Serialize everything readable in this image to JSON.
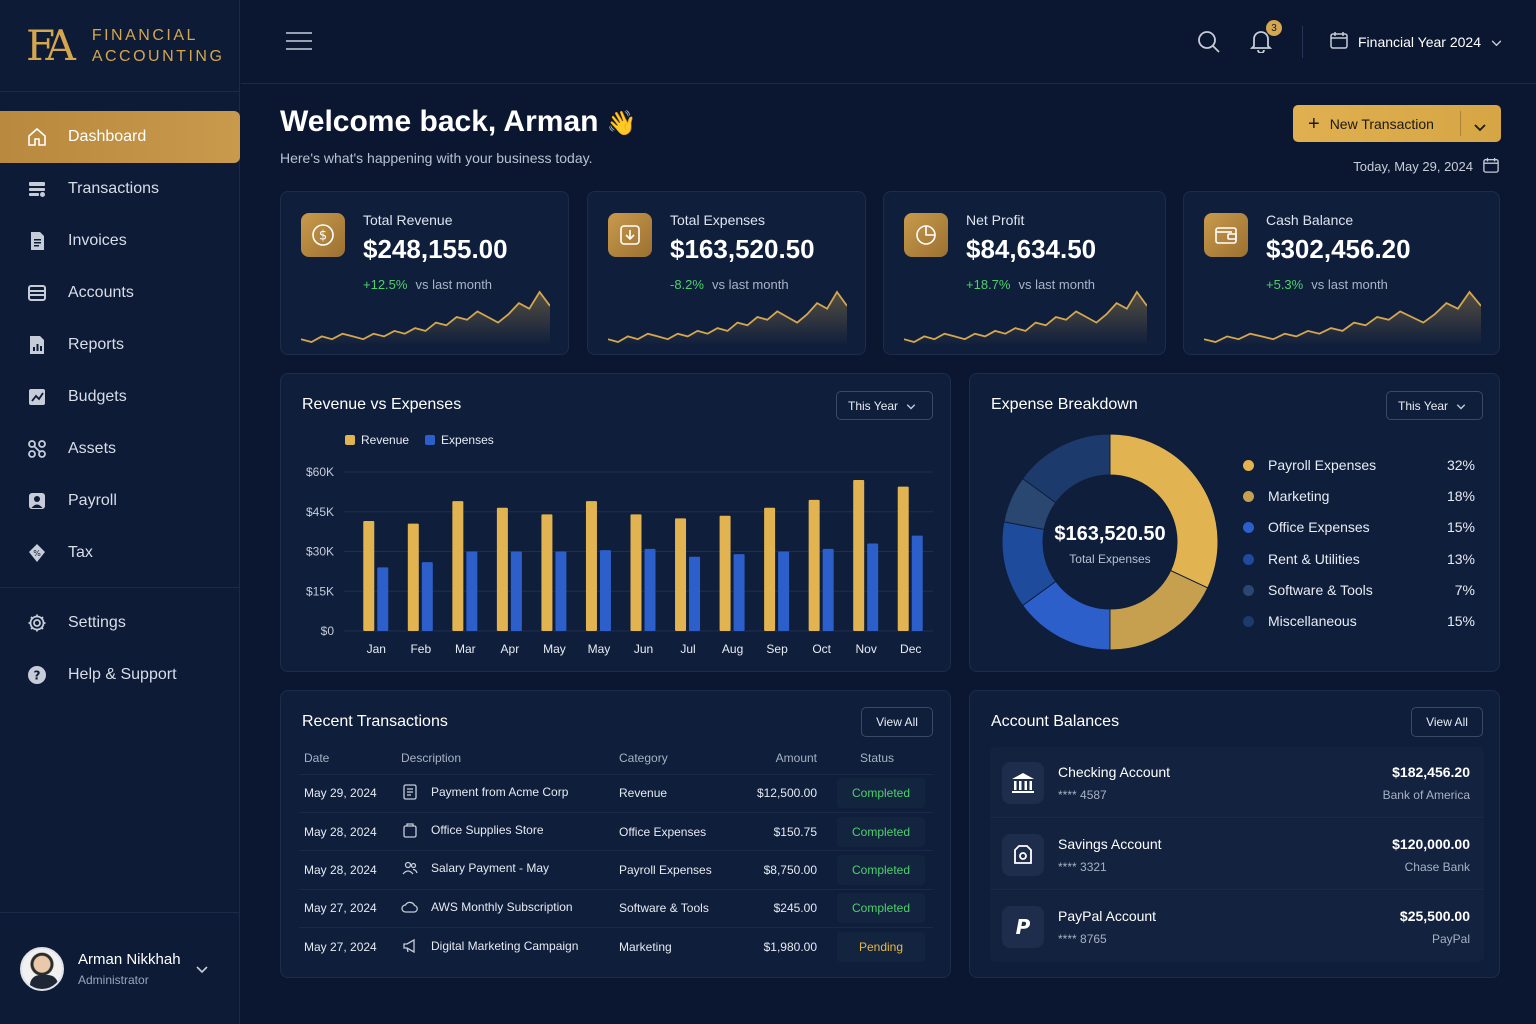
{
  "brand": {
    "mono": "FA",
    "line1": "FINANCIAL",
    "line2": "ACCOUNTING"
  },
  "nav": [
    {
      "label": "Dashboard",
      "icon": "home-icon"
    },
    {
      "label": "Transactions",
      "icon": "transactions-icon"
    },
    {
      "label": "Invoices",
      "icon": "invoice-icon"
    },
    {
      "label": "Accounts",
      "icon": "accounts-icon"
    },
    {
      "label": "Reports",
      "icon": "reports-icon"
    },
    {
      "label": "Budgets",
      "icon": "budgets-icon"
    },
    {
      "label": "Assets",
      "icon": "assets-icon"
    },
    {
      "label": "Payroll",
      "icon": "payroll-icon"
    },
    {
      "label": "Tax",
      "icon": "tax-icon"
    }
  ],
  "nav_bottom": [
    {
      "label": "Settings",
      "icon": "gear-icon"
    },
    {
      "label": "Help & Support",
      "icon": "help-icon"
    }
  ],
  "user": {
    "name": "Arman Nikkhah",
    "role": "Administrator"
  },
  "topbar": {
    "notification_count": "3",
    "year_selector": "Financial Year 2024"
  },
  "header": {
    "welcome": "Welcome back, Arman",
    "wave": "👋",
    "subtitle": "Here's what's happening with your business today.",
    "new_transaction": "New Transaction",
    "today": "Today, May 29, 2024"
  },
  "kpis": [
    {
      "label": "Total Revenue",
      "value": "$248,155.00",
      "change": "+12.5%",
      "vs": "vs last month",
      "icon": "dollar-icon"
    },
    {
      "label": "Total Expenses",
      "value": "$163,520.50",
      "change": "-8.2%",
      "vs": "vs last month",
      "icon": "download-icon"
    },
    {
      "label": "Net Profit",
      "value": "$84,634.50",
      "change": "+18.7%",
      "vs": "vs last month",
      "icon": "pie-icon"
    },
    {
      "label": "Cash Balance",
      "value": "$302,456.20",
      "change": "+5.3%",
      "vs": "vs last month",
      "icon": "wallet-icon"
    }
  ],
  "sparkline": [
    3,
    2,
    4,
    3,
    5,
    4,
    3,
    5,
    4,
    6,
    5,
    7,
    6,
    9,
    8,
    11,
    10,
    13,
    11,
    9,
    12,
    16,
    14,
    20,
    15
  ],
  "revenue_chart": {
    "title": "Revenue vs Expenses",
    "range": "This Year",
    "legend": [
      "Revenue",
      "Expenses"
    ],
    "y_ticks": [
      "$60K",
      "$45K",
      "$30K",
      "$15K",
      "$0"
    ]
  },
  "chart_data": [
    {
      "type": "bar",
      "title": "Revenue vs Expenses",
      "categories": [
        "Jan",
        "Feb",
        "Mar",
        "Apr",
        "May",
        "May",
        "Jun",
        "Jul",
        "Aug",
        "Sep",
        "Oct",
        "Nov",
        "Dec"
      ],
      "series": [
        {
          "name": "Revenue",
          "values": [
            41.5,
            40.5,
            49,
            46.5,
            44,
            49,
            44,
            42.5,
            43.5,
            46.5,
            49.5,
            57,
            54.5
          ]
        },
        {
          "name": "Expenses",
          "values": [
            24,
            26,
            30,
            30,
            30,
            30.5,
            31,
            28,
            29,
            30,
            31,
            33,
            36
          ]
        }
      ],
      "ylim": [
        0,
        60
      ],
      "colors": {
        "Revenue": "#e2b351",
        "Expenses": "#2c5fc9"
      }
    },
    {
      "type": "pie",
      "title": "Expense Breakdown",
      "center_value": "$163,520.50",
      "center_label": "Total Expenses",
      "labels": [
        "Payroll Expenses",
        "Marketing",
        "Office Expenses",
        "Rent & Utilities",
        "Software & Tools",
        "Miscellaneous"
      ],
      "values": [
        32,
        18,
        15,
        13,
        7,
        15
      ],
      "percent_labels": [
        "32%",
        "18%",
        "15%",
        "13%",
        "7%",
        "15%"
      ],
      "colors": [
        "#e2b351",
        "#c7a04f",
        "#2c5fc9",
        "#1e4b9b",
        "#2a4771",
        "#1c3a6b"
      ]
    }
  ],
  "expense_breakdown": {
    "title": "Expense Breakdown",
    "range": "This Year"
  },
  "recent_transactions": {
    "title": "Recent Transactions",
    "view_all": "View All",
    "columns": [
      "Date",
      "Description",
      "Category",
      "Amount",
      "Status"
    ],
    "rows": [
      {
        "date": "May 29, 2024",
        "icon": "receipt-icon",
        "desc": "Payment from Acme Corp",
        "cat": "Revenue",
        "amount": "$12,500.00",
        "status": "Completed"
      },
      {
        "date": "May 28, 2024",
        "icon": "bag-icon",
        "desc": "Office Supplies Store",
        "cat": "Office Expenses",
        "amount": "$150.75",
        "status": "Completed"
      },
      {
        "date": "May 28, 2024",
        "icon": "users-icon",
        "desc": "Salary Payment - May",
        "cat": "Payroll Expenses",
        "amount": "$8,750.00",
        "status": "Completed"
      },
      {
        "date": "May 27, 2024",
        "icon": "cloud-icon",
        "desc": "AWS Monthly Subscription",
        "cat": "Software & Tools",
        "amount": "$245.00",
        "status": "Completed"
      },
      {
        "date": "May 27, 2024",
        "icon": "megaphone-icon",
        "desc": "Digital Marketing Campaign",
        "cat": "Marketing",
        "amount": "$1,980.00",
        "status": "Pending"
      }
    ]
  },
  "account_balances": {
    "title": "Account Balances",
    "view_all": "View All",
    "accounts": [
      {
        "name": "Checking Account",
        "number": "**** 4587",
        "balance": "$182,456.20",
        "bank": "Bank of America",
        "icon": "bank-icon"
      },
      {
        "name": "Savings Account",
        "number": "**** 3321",
        "balance": "$120,000.00",
        "bank": "Chase Bank",
        "icon": "safe-icon"
      },
      {
        "name": "PayPal Account",
        "number": "**** 8765",
        "balance": "$25,500.00",
        "bank": "PayPal",
        "icon": "paypal-icon"
      }
    ]
  }
}
